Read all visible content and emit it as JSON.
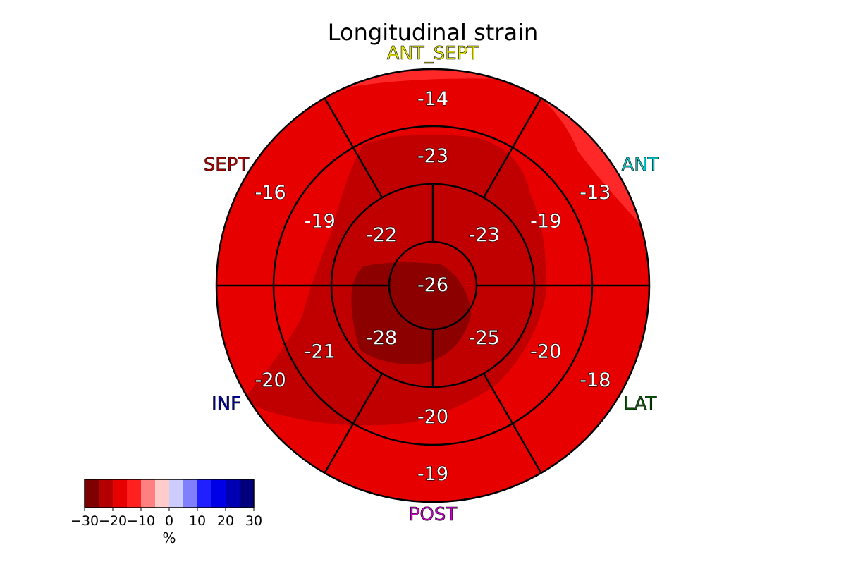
{
  "chart_data": {
    "type": "bullseye",
    "title": "Longitudinal strain",
    "wall_labels": {
      "ant_sept": "ANT_SEPT",
      "ant": "ANT",
      "lat": "LAT",
      "post": "POST",
      "inf": "INF",
      "sept": "SEPT"
    },
    "wall_label_colors": {
      "ant_sept": "#e6e600",
      "ant": "#00cccc",
      "lat": "#0a5c0a",
      "post": "#cc00cc",
      "inf": "#0000b3",
      "sept": "#b30000"
    },
    "segments": {
      "basal": [
        {
          "wall": "ANT_SEPT",
          "value": -14
        },
        {
          "wall": "ANT",
          "value": -13
        },
        {
          "wall": "LAT",
          "value": -18
        },
        {
          "wall": "POST",
          "value": -19
        },
        {
          "wall": "INF",
          "value": -20
        },
        {
          "wall": "SEPT",
          "value": -16
        }
      ],
      "mid": [
        {
          "wall": "ANT_SEPT",
          "value": -23
        },
        {
          "wall": "ANT",
          "value": -19
        },
        {
          "wall": "LAT",
          "value": -20
        },
        {
          "wall": "POST",
          "value": -20
        },
        {
          "wall": "INF",
          "value": -21
        },
        {
          "wall": "SEPT",
          "value": -19
        }
      ],
      "apical": [
        {
          "wall": "ANT",
          "value": -23
        },
        {
          "wall": "LAT",
          "value": -25
        },
        {
          "wall": "INF",
          "value": -28
        },
        {
          "wall": "SEPT",
          "value": -22
        }
      ],
      "apex": {
        "value": -26
      }
    },
    "colorbar": {
      "label": "%",
      "range": [
        -30,
        30
      ],
      "ticks": [
        "−30",
        "−20",
        "−10",
        "0",
        "10",
        "20",
        "30"
      ],
      "bins": [
        {
          "from": -30,
          "to": -25,
          "color": "#7f0000"
        },
        {
          "from": -25,
          "to": -20,
          "color": "#b30000"
        },
        {
          "from": -20,
          "to": -15,
          "color": "#e60000"
        },
        {
          "from": -15,
          "to": -10,
          "color": "#ff2020"
        },
        {
          "from": -10,
          "to": -5,
          "color": "#ff8080"
        },
        {
          "from": -5,
          "to": 0,
          "color": "#ffcccc"
        },
        {
          "from": 0,
          "to": 5,
          "color": "#ccccff"
        },
        {
          "from": 5,
          "to": 10,
          "color": "#8080ff"
        },
        {
          "from": 10,
          "to": 15,
          "color": "#2020ff"
        },
        {
          "from": 15,
          "to": 20,
          "color": "#0000e6"
        },
        {
          "from": 20,
          "to": 25,
          "color": "#0000b3"
        },
        {
          "from": 25,
          "to": 30,
          "color": "#00007f"
        }
      ]
    }
  }
}
